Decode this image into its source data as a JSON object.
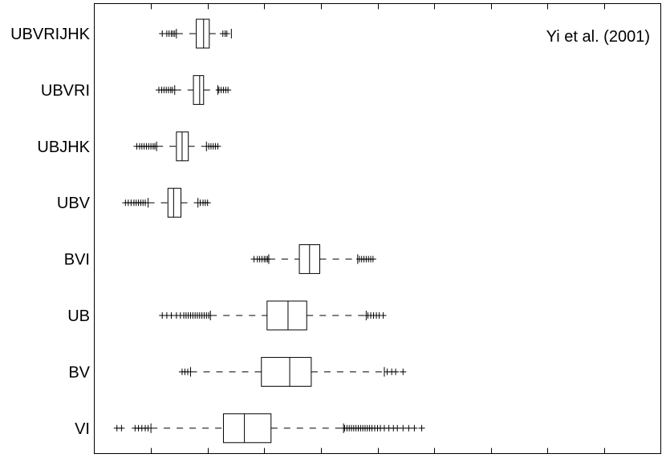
{
  "chart_data": {
    "type": "boxplot",
    "orientation": "horizontal",
    "annotation": "Yi et al. (2001)",
    "x_tick_count": 10,
    "xlim": [
      0,
      10
    ],
    "x_ticks": [
      1,
      2,
      3,
      4,
      5,
      6,
      7,
      8,
      9
    ],
    "categories": [
      "UBVRIJHK",
      "UBVRI",
      "UBJHK",
      "UBV",
      "BVI",
      "UB",
      "BV",
      "VI"
    ],
    "boxes": [
      {
        "label": "UBVRIJHK",
        "q1": 1.8,
        "median": 1.93,
        "q3": 2.03,
        "whisker_low": 1.45,
        "whisker_high": 2.42,
        "outliers": [
          1.2,
          1.28,
          1.32,
          1.36,
          1.39,
          1.42,
          2.27,
          2.31,
          2.34
        ]
      },
      {
        "label": "UBVRI",
        "q1": 1.75,
        "median": 1.86,
        "q3": 1.93,
        "whisker_low": 1.42,
        "whisker_high": 2.18,
        "outliers": [
          1.14,
          1.19,
          1.23,
          1.27,
          1.31,
          1.35,
          1.38,
          2.2,
          2.24,
          2.28,
          2.32,
          2.36
        ]
      },
      {
        "label": "UBJHK",
        "q1": 1.45,
        "median": 1.55,
        "q3": 1.66,
        "whisker_low": 1.1,
        "whisker_high": 1.98,
        "outliers": [
          0.75,
          0.8,
          0.84,
          0.88,
          0.92,
          0.96,
          1.0,
          1.04,
          1.07,
          2.02,
          2.06,
          2.1,
          2.14,
          2.18
        ]
      },
      {
        "label": "UBV",
        "q1": 1.3,
        "median": 1.4,
        "q3": 1.53,
        "whisker_low": 0.95,
        "whisker_high": 1.83,
        "outliers": [
          0.55,
          0.6,
          0.65,
          0.7,
          0.74,
          0.78,
          0.82,
          0.86,
          0.9,
          1.87,
          1.92,
          1.96,
          2.0
        ]
      },
      {
        "label": "BVI",
        "q1": 3.62,
        "median": 3.8,
        "q3": 3.98,
        "whisker_low": 3.08,
        "whisker_high": 4.65,
        "outliers": [
          2.82,
          2.88,
          2.92,
          2.96,
          3.0,
          3.03,
          3.06,
          4.68,
          4.72,
          4.76,
          4.8,
          4.84,
          4.88,
          4.92
        ]
      },
      {
        "label": "UB",
        "q1": 3.05,
        "median": 3.42,
        "q3": 3.75,
        "whisker_low": 2.05,
        "whisker_high": 4.8,
        "outliers": [
          1.2,
          1.28,
          1.36,
          1.45,
          1.52,
          1.58,
          1.62,
          1.66,
          1.7,
          1.74,
          1.78,
          1.82,
          1.86,
          1.9,
          1.94,
          1.98,
          2.02,
          4.83,
          4.88,
          4.93,
          4.98,
          5.03,
          5.1
        ]
      },
      {
        "label": "BV",
        "q1": 2.95,
        "median": 3.45,
        "q3": 3.83,
        "whisker_low": 1.7,
        "whisker_high": 5.12,
        "outliers": [
          1.55,
          1.6,
          1.65,
          5.17,
          5.25,
          5.32,
          5.45
        ]
      },
      {
        "label": "VI",
        "q1": 2.28,
        "median": 2.65,
        "q3": 3.12,
        "whisker_low": 1.0,
        "whisker_high": 4.4,
        "outliers": [
          0.4,
          0.48,
          0.72,
          0.78,
          0.84,
          0.9,
          0.95,
          4.42,
          4.46,
          4.5,
          4.54,
          4.58,
          4.62,
          4.66,
          4.7,
          4.74,
          4.78,
          4.82,
          4.86,
          4.9,
          4.95,
          5.0,
          5.05,
          5.12,
          5.2,
          5.28,
          5.35,
          5.45,
          5.55,
          5.65,
          5.78
        ]
      }
    ]
  }
}
